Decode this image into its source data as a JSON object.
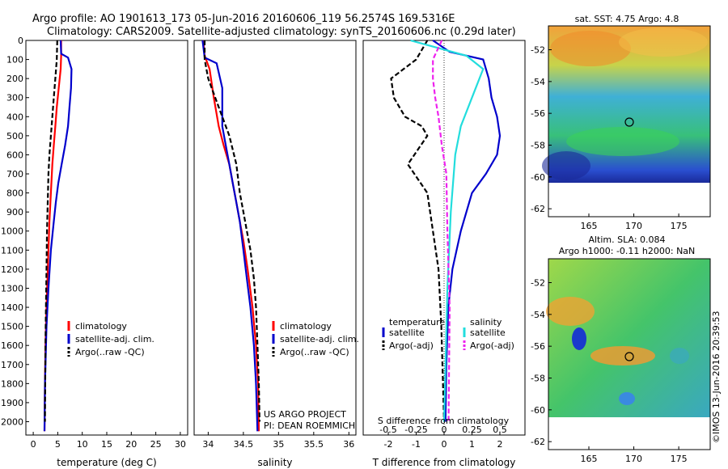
{
  "header": {
    "line1": "Argo profile: AO 1901613_173 05-Jun-2016 20160606_119 56.2574S 169.5316E",
    "line2": "Climatology: CARS2009. Satellite-adjusted climatology: synTS_20160606.nc (0.29d later)"
  },
  "colors": {
    "climatology": "#ff0000",
    "satellite": "#0000cc",
    "argo": "#000000",
    "sat_salinity": "#22dddd",
    "argo_salinity": "#ee22ee"
  },
  "annotations": {
    "project": "US ARGO PROJECT",
    "pi": "PI: DEAN ROEMMICH",
    "watermark": "©IMOS 13-Jun-2016 20:39:53"
  },
  "chart_data": [
    {
      "type": "line",
      "xlabel": "temperature (deg C)",
      "xlim": [
        -1.5,
        31.5
      ],
      "ylim": [
        2070,
        0
      ],
      "xticks": [
        "0",
        "5",
        "10",
        "15",
        "20",
        "25",
        "30"
      ],
      "yticks": [
        "0",
        "100",
        "200",
        "300",
        "400",
        "500",
        "600",
        "700",
        "800",
        "900",
        "1000",
        "1100",
        "1200",
        "1300",
        "1400",
        "1500",
        "1600",
        "1700",
        "1800",
        "1900",
        "2000"
      ],
      "legend": [
        "climatology",
        "satellite-adj. clim.",
        "Argo(..raw -QC)"
      ],
      "series": [
        {
          "name": "climatology",
          "x": [
            5.7,
            5.7,
            5.6,
            5.2,
            4.8,
            4.5,
            4.2,
            3.9,
            3.7,
            3.5,
            3.3,
            3.1,
            2.9,
            2.7,
            2.5,
            2.4,
            2.3
          ],
          "y": [
            0,
            80,
            150,
            250,
            350,
            450,
            550,
            650,
            750,
            850,
            950,
            1100,
            1250,
            1400,
            1600,
            1800,
            2050
          ]
        },
        {
          "name": "satellite-adj. clim.",
          "x": [
            5.6,
            5.7,
            7.1,
            7.8,
            7.7,
            7.4,
            7.1,
            6.5,
            5.8,
            5.1,
            4.6,
            4.2,
            3.6,
            3.1,
            2.7,
            2.4,
            2.3
          ],
          "y": [
            0,
            70,
            90,
            150,
            250,
            350,
            450,
            550,
            650,
            750,
            850,
            950,
            1100,
            1300,
            1500,
            1800,
            2050
          ]
        },
        {
          "name": "Argo(..raw -QC)",
          "x": [
            4.9,
            4.8,
            4.5,
            4.2,
            3.9,
            3.6,
            3.3,
            3.1,
            3.0,
            2.9,
            2.8,
            2.7,
            2.6,
            2.5,
            2.45,
            2.4
          ],
          "y": [
            0,
            100,
            200,
            300,
            400,
            500,
            600,
            700,
            800,
            900,
            1000,
            1200,
            1400,
            1600,
            1800,
            2000
          ]
        }
      ]
    },
    {
      "type": "line",
      "xlabel": "salinity",
      "xlim": [
        33.8,
        36.1
      ],
      "ylim": [
        2070,
        0
      ],
      "xticks": [
        "34",
        "34.5",
        "35",
        "35.5",
        "36"
      ],
      "legend": [
        "climatology",
        "satellite-adj. clim.",
        "Argo(..raw -QC)"
      ],
      "series": [
        {
          "name": "climatology",
          "x": [
            33.93,
            33.95,
            34.02,
            34.08,
            34.15,
            34.22,
            34.3,
            34.35,
            34.4,
            34.45,
            34.5,
            34.56,
            34.63,
            34.68,
            34.71,
            34.72
          ],
          "y": [
            0,
            80,
            150,
            300,
            450,
            550,
            650,
            750,
            850,
            950,
            1050,
            1200,
            1400,
            1600,
            1800,
            2050
          ]
        },
        {
          "name": "satellite-adj. clim.",
          "x": [
            33.92,
            33.95,
            34.12,
            34.2,
            34.2,
            34.25,
            34.3,
            34.35,
            34.4,
            34.45,
            34.5,
            34.55,
            34.6,
            34.65,
            34.68,
            34.7
          ],
          "y": [
            0,
            90,
            120,
            250,
            450,
            550,
            650,
            750,
            850,
            950,
            1100,
            1250,
            1400,
            1600,
            1800,
            2050
          ]
        },
        {
          "name": "Argo(..raw -QC)",
          "x": [
            33.95,
            33.95,
            34.0,
            34.15,
            34.3,
            34.4,
            34.45,
            34.5,
            34.55,
            34.6,
            34.65,
            34.68,
            34.7,
            34.72,
            34.73
          ],
          "y": [
            0,
            100,
            200,
            350,
            500,
            650,
            800,
            900,
            1000,
            1100,
            1250,
            1400,
            1600,
            1800,
            2000
          ]
        }
      ]
    },
    {
      "type": "line",
      "xlabel": "T difference from climatology",
      "xlabel_top": "S difference from climatology",
      "xlim": [
        -2.9,
        2.9
      ],
      "ylim": [
        2070,
        0
      ],
      "xticks": [
        "-2",
        "-1",
        "0",
        "1",
        "2"
      ],
      "xticks_top": [
        "-0.5",
        "-0.25",
        "0",
        "0.25",
        "0.5"
      ],
      "legend_left_title": "temperature",
      "legend_right_title": "salinity",
      "legend_left": [
        "satellite",
        "Argo(-adj)"
      ],
      "legend_right": [
        "satellite",
        "Argo(-adj)"
      ],
      "series": [
        {
          "name": "satellite",
          "x": [
            -0.4,
            0.2,
            1.4,
            1.6,
            1.7,
            1.9,
            2.0,
            1.9,
            1.5,
            1.0,
            0.6,
            0.3,
            0.15,
            0.08,
            0.05
          ],
          "y": [
            0,
            60,
            100,
            200,
            300,
            400,
            500,
            600,
            700,
            800,
            1000,
            1200,
            1400,
            1700,
            2000
          ]
        },
        {
          "name": "Argo(-adj)",
          "x": [
            -0.6,
            -1.0,
            -1.9,
            -1.8,
            -1.4,
            -0.8,
            -0.6,
            -1.3,
            -0.6,
            -0.4,
            -0.2,
            -0.1,
            0
          ],
          "y": [
            0,
            100,
            200,
            300,
            400,
            450,
            500,
            650,
            800,
            1000,
            1200,
            1500,
            2000
          ]
        },
        {
          "name": "satellite",
          "x": [
            -0.3,
            0.2,
            0.35,
            0.25,
            0.15,
            0.1,
            0.06,
            0.03,
            0
          ],
          "y": [
            0,
            80,
            150,
            300,
            450,
            600,
            900,
            1300,
            2000
          ]
        },
        {
          "name": "Argo(-adj)",
          "x": [
            -0.02,
            -0.1,
            -0.1,
            -0.08,
            -0.05,
            -0.02,
            0.02,
            0.03,
            0.05,
            0.04
          ],
          "y": [
            0,
            100,
            200,
            300,
            400,
            550,
            700,
            1000,
            1400,
            2000
          ]
        }
      ]
    },
    {
      "type": "heatmap",
      "title": "sat. SST: 4.75 Argo: 4.8",
      "xlim": [
        160.5,
        178.5
      ],
      "ylim": [
        -62.5,
        -50.5
      ],
      "xticks": [
        "165",
        "170",
        "175"
      ],
      "yticks": [
        "-52",
        "-54",
        "-56",
        "-58",
        "-60",
        "-62"
      ]
    },
    {
      "type": "heatmap",
      "title_line1": "Altim. SLA: 0.084",
      "title_line2": "Argo h1000: -0.11 h2000: NaN",
      "xlim": [
        160.5,
        178.5
      ],
      "ylim": [
        -62.5,
        -50.5
      ],
      "xticks": [
        "165",
        "170",
        "175"
      ],
      "yticks": [
        "-52",
        "-54",
        "-56",
        "-58",
        "-60",
        "-62"
      ]
    }
  ]
}
